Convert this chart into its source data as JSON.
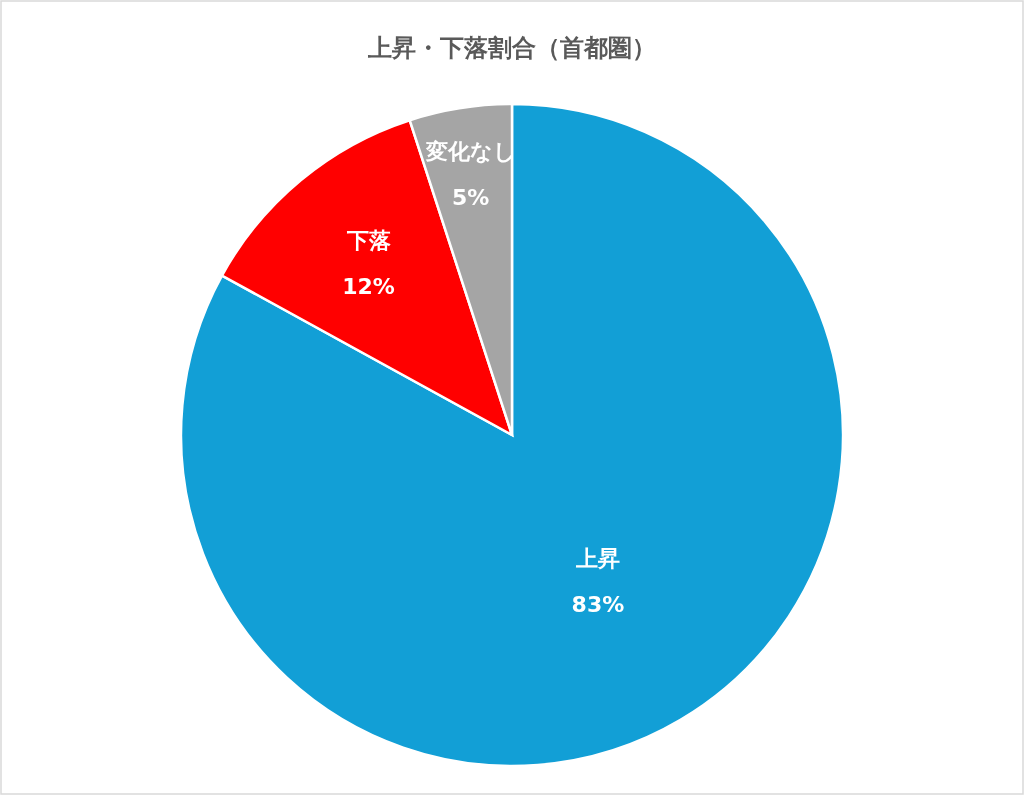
{
  "chart_data": {
    "type": "pie",
    "title": "上昇・下落割合（首都圏）",
    "categories": [
      "上昇",
      "下落",
      "変化なし"
    ],
    "values": [
      83,
      12,
      5
    ],
    "colors": [
      "#129fd6",
      "#ff0000",
      "#a5a5a5"
    ],
    "value_labels": [
      "83%",
      "12%",
      "5%"
    ],
    "legend": false
  }
}
